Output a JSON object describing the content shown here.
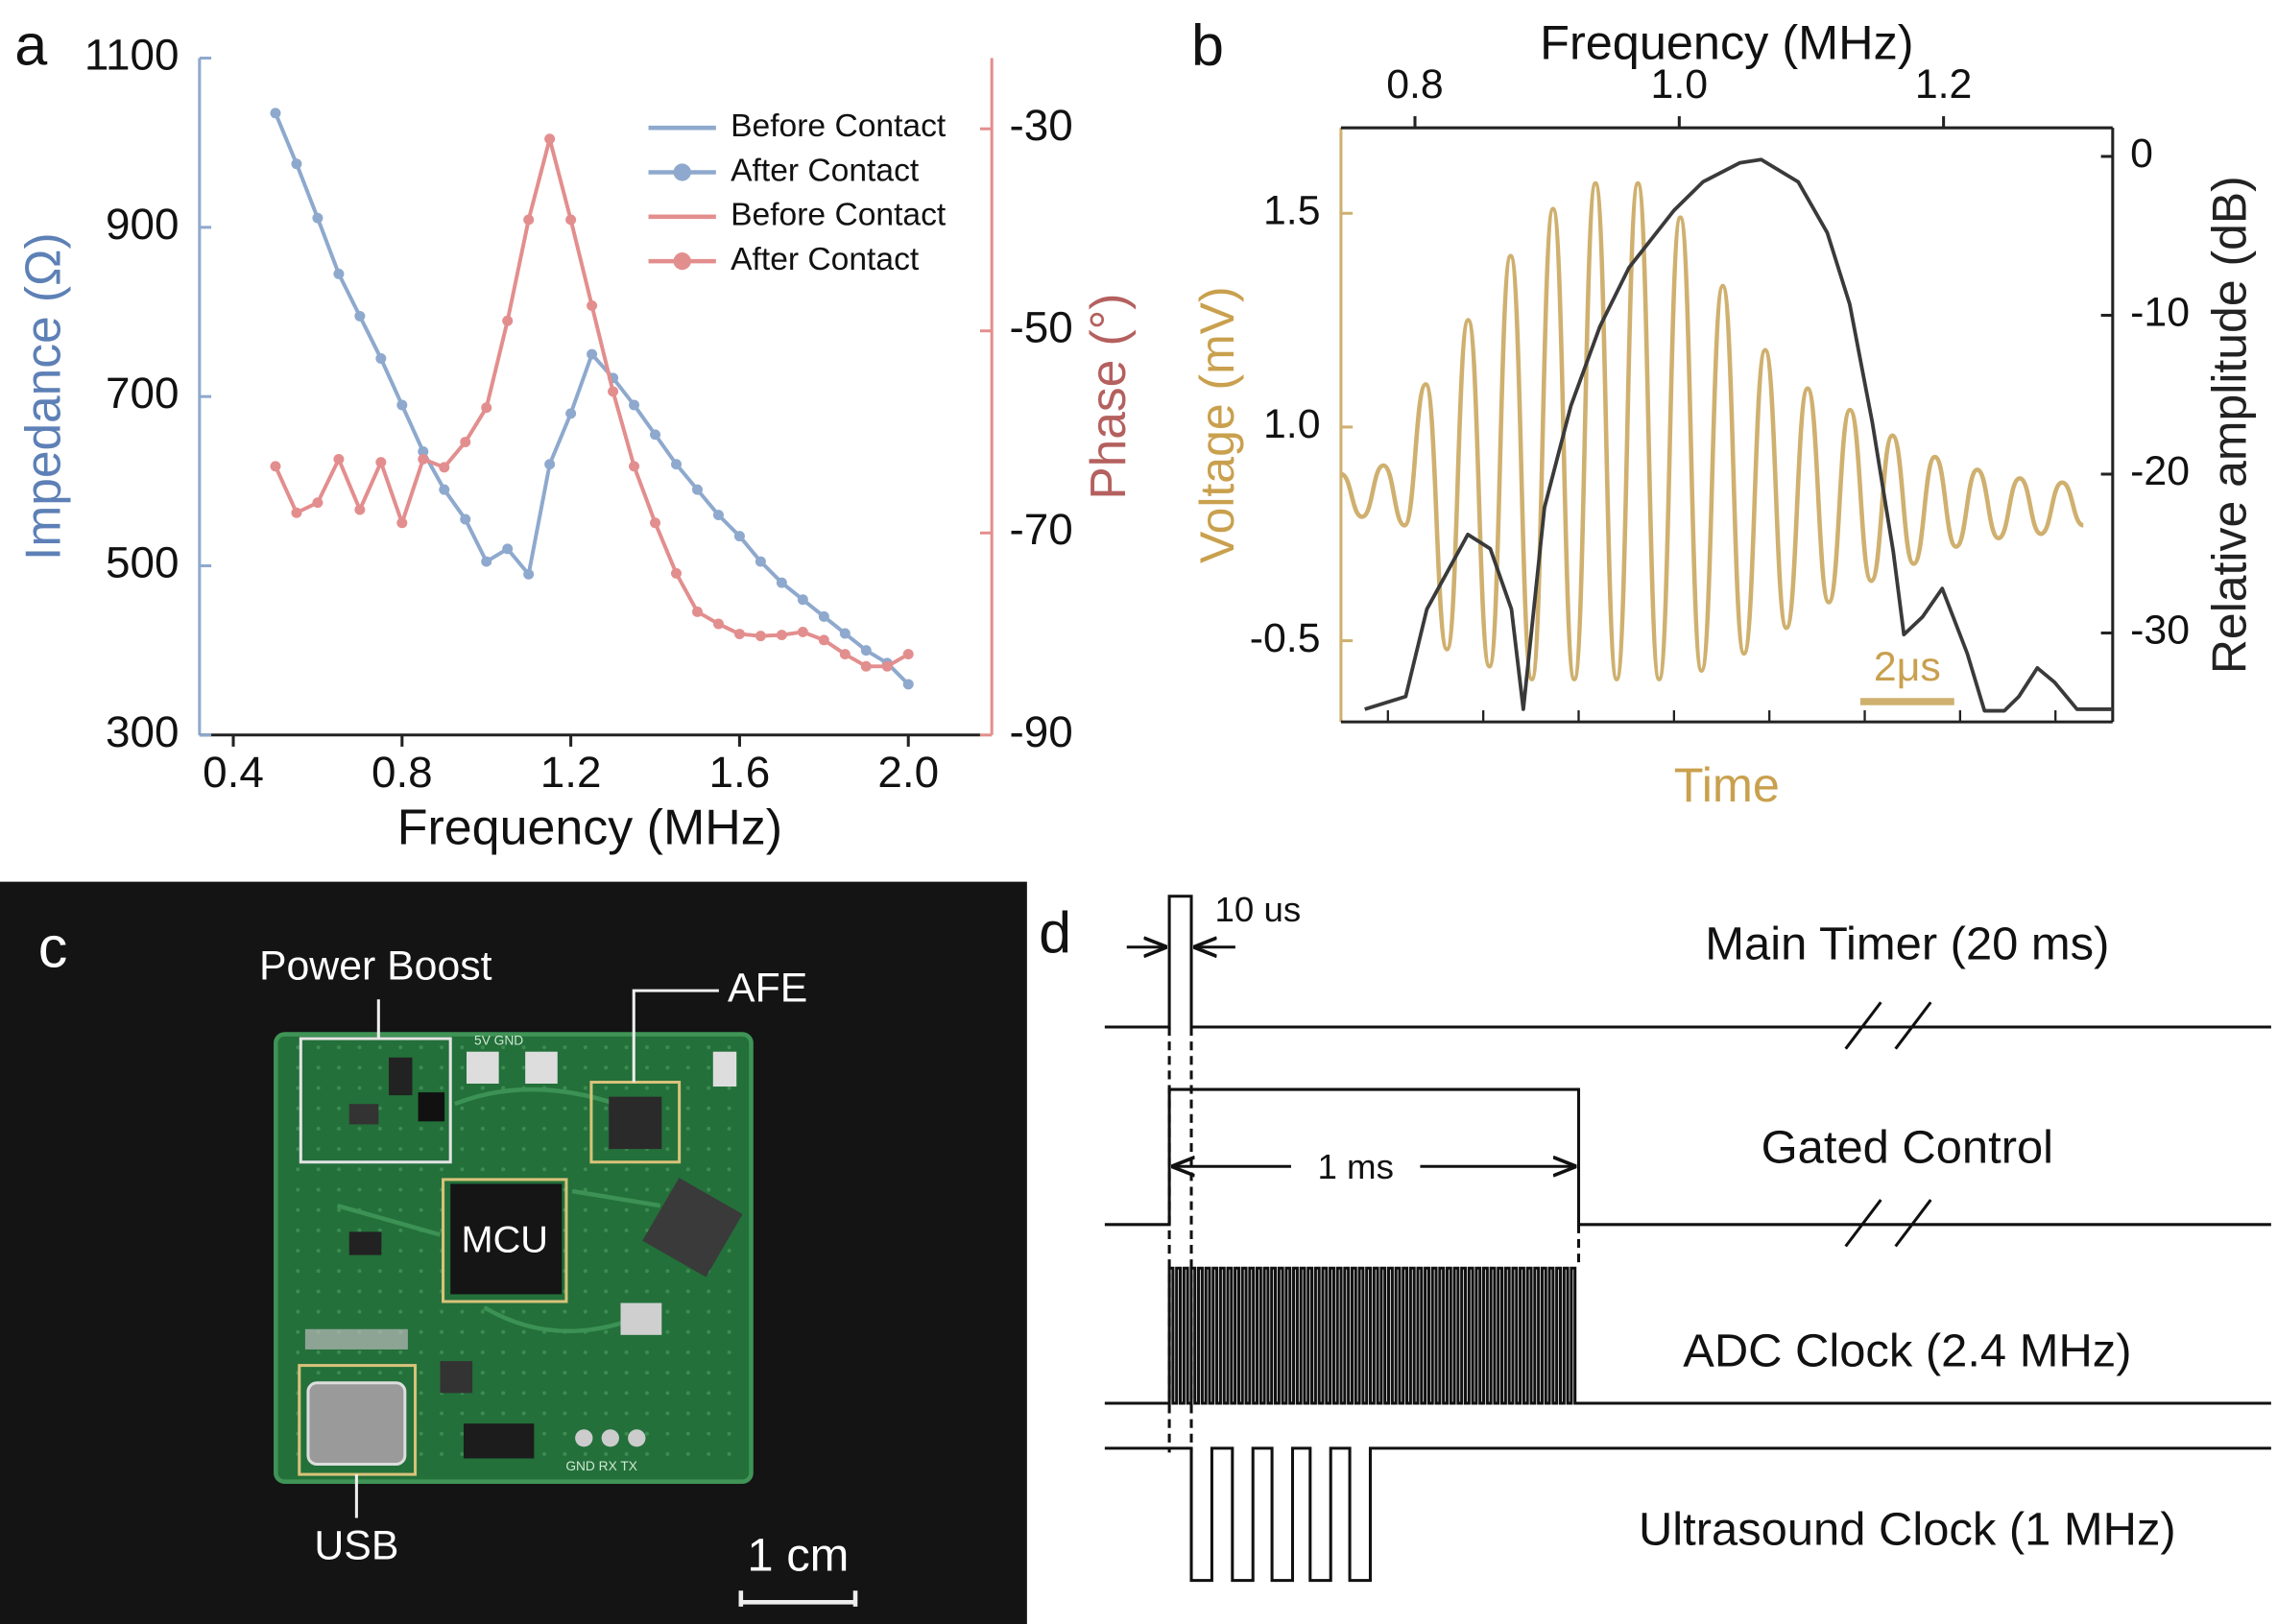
{
  "panel_labels": [
    "a",
    "b",
    "c",
    "d"
  ],
  "chart_data": [
    {
      "type": "line",
      "x_label": "Frequency (MHz)",
      "y_label": "Impedance (Ω)",
      "y2_label": "Phase (°)",
      "x": [
        0.5,
        0.55,
        0.6,
        0.65,
        0.7,
        0.75,
        0.8,
        0.85,
        0.9,
        0.95,
        1.0,
        1.05,
        1.1,
        1.15,
        1.2,
        1.25,
        1.3,
        1.35,
        1.4,
        1.45,
        1.5,
        1.55,
        1.6,
        1.65,
        1.7,
        1.75,
        1.8,
        1.85,
        1.9,
        1.95,
        2.0
      ],
      "xlim": [
        0.32,
        2.17
      ],
      "xticks": [
        0.4,
        0.8,
        1.2,
        1.6,
        {
          "value": 2,
          "label": "2.0"
        }
      ],
      "ylim": [
        300,
        1100
      ],
      "yticks": [
        300,
        500,
        700,
        900,
        1100
      ],
      "y2lim": [
        -90,
        -23
      ],
      "y2ticks": [
        -90,
        -70,
        -50,
        -30
      ],
      "legend": "upper right",
      "series": [
        {
          "name": "Before Contact",
          "color": "#8ea9cd",
          "marker": false,
          "values": [
            1035,
            975,
            911,
            845,
            795,
            745,
            690,
            635,
            590,
            555,
            505,
            520,
            490,
            620,
            680,
            750,
            722,
            690,
            655,
            620,
            590,
            560,
            535,
            505,
            480,
            460,
            440,
            420,
            400,
            385,
            360
          ]
        },
        {
          "name": "After Contact",
          "color": "#8ea9cd",
          "marker": true,
          "values": [
            1035,
            975,
            911,
            845,
            795,
            745,
            690,
            635,
            590,
            555,
            505,
            520,
            490,
            620,
            680,
            750,
            722,
            690,
            655,
            620,
            590,
            560,
            535,
            505,
            480,
            460,
            440,
            420,
            400,
            385,
            360
          ]
        },
        {
          "name": "Before Contact",
          "color": "#e38e8e",
          "marker": false,
          "axis": "y2",
          "values": [
            -63.4,
            -68,
            -67,
            -62.7,
            -67.7,
            -63,
            -69,
            -62.7,
            -63.5,
            -61,
            -57.6,
            -49,
            -39,
            -31,
            -39,
            -47.5,
            -56,
            -63.4,
            -69,
            -74,
            -77.8,
            -79,
            -80,
            -80.2,
            -80.1,
            -79.8,
            -80.6,
            -82,
            -83.2,
            -83.2,
            -82
          ]
        },
        {
          "name": "After Contact",
          "color": "#e38e8e",
          "marker": true,
          "axis": "y2",
          "values": [
            -63.4,
            -68,
            -67,
            -62.7,
            -67.7,
            -63,
            -69,
            -62.7,
            -63.5,
            -61,
            -57.6,
            -49,
            -39,
            -31,
            -39,
            -47.5,
            -56,
            -63.4,
            -69,
            -74,
            -77.8,
            -79,
            -80,
            -80.2,
            -80.1,
            -79.8,
            -80.6,
            -82,
            -83.2,
            -83.2,
            -82
          ]
        }
      ]
    },
    {
      "type": "line",
      "x_label": "Frequency (MHz)",
      "time_label": "Time",
      "scale_bar": "2μs",
      "y_label": "Voltage (mV)",
      "y2_label": "Relative amplitude (dB)",
      "xlim": [
        0.744,
        1.328
      ],
      "xticks": [
        0.8,
        {
          "value": 1,
          "label": "1.0"
        },
        1.2
      ],
      "ylim": [
        0.31,
        1.7
      ],
      "yticks": [
        {
          "value": 0.5,
          "label": "-0.5"
        },
        {
          "value": 1,
          "label": "1.0"
        },
        1.5
      ],
      "y2lim": [
        -35.6,
        1.8
      ],
      "y2ticks": [
        0,
        -10,
        -20,
        -30
      ],
      "series": [
        {
          "color": "#cfb06f",
          "smooth": true,
          "values": [
            0.89,
            0.79,
            0.91,
            0.77,
            1.1,
            0.48,
            1.25,
            0.44,
            1.4,
            0.41,
            1.51,
            0.41,
            1.57,
            0.41,
            1.57,
            0.41,
            1.49,
            0.43,
            1.33,
            0.47,
            1.18,
            0.53,
            1.09,
            0.59,
            1.04,
            0.64,
            0.98,
            0.68,
            0.93,
            0.72,
            0.9,
            0.74,
            0.88,
            0.75,
            0.87,
            0.77
          ]
        },
        {
          "color": "#3a3a3a",
          "axis": "y2",
          "x": [
            0.762,
            0.793,
            0.809,
            0.84,
            0.857,
            0.873,
            0.882,
            0.898,
            0.918,
            0.94,
            0.962,
            0.996,
            1.018,
            1.046,
            1.062,
            1.09,
            1.112,
            1.129,
            1.146,
            1.162,
            1.17,
            1.184,
            1.199,
            1.218,
            1.231,
            1.246,
            1.257,
            1.271,
            1.284,
            1.301,
            1.328
          ],
          "values": [
            -34.8,
            -34,
            -28.5,
            -23.8,
            -24.7,
            -28.5,
            -34.8,
            -22.1,
            -15.7,
            -10.7,
            -7,
            -3.4,
            -1.6,
            -0.4,
            -0.2,
            -1.6,
            -4.8,
            -9.3,
            -16.7,
            -24.9,
            -30.1,
            -29,
            -27.2,
            -31.3,
            -34.9,
            -34.9,
            -34,
            -32.2,
            -33.1,
            -34.8,
            -34.8
          ]
        }
      ]
    }
  ],
  "photo": {
    "labels": {
      "power_boost": "Power Boost",
      "afe": "AFE",
      "mcu": "MCU",
      "usb": "USB",
      "silkscreen_top": "5V GND",
      "silkscreen_bottom": "GND RX TX"
    },
    "scale_bar": "1 cm"
  },
  "timing_diagram": {
    "pulse_width": "10 us",
    "gate_width": "1 ms",
    "signals": [
      "Main Timer (20 ms)",
      "Gated Control",
      "ADC Clock (2.4 MHz)",
      "Ultrasound Clock (1 MHz)"
    ]
  }
}
